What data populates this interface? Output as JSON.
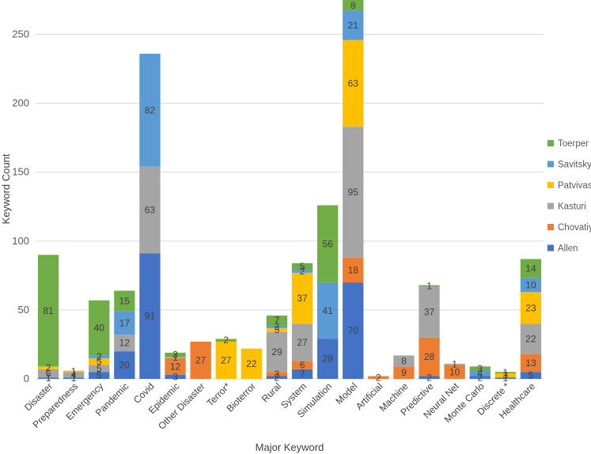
{
  "chart_data": {
    "type": "bar",
    "stacked": true,
    "title": "",
    "xlabel": "Major Keyword",
    "ylabel": "Keyword Count",
    "ylim": [
      0,
      275
    ],
    "yticks": [
      0,
      50,
      100,
      150,
      200,
      250
    ],
    "grid": true,
    "legend_position": "right",
    "categories": [
      "Disaster",
      "Preparedness",
      "Emergency",
      "Pandemic",
      "Covid",
      "Epidemic",
      "Other Disaster",
      "Terror*",
      "Bioterror",
      "Rural",
      "System",
      "Simulation",
      "Model",
      "Artificial",
      "Machine",
      "Predictive",
      "Neural Net",
      "Monte Carlo",
      "Discrete *",
      "Healthcare"
    ],
    "series": [
      {
        "name": "Allen",
        "color": "#4472C4",
        "values": [
          1,
          1,
          5,
          20,
          91,
          3,
          0,
          0,
          0,
          2,
          7,
          29,
          70,
          0,
          0,
          2,
          0,
          2,
          1,
          5
        ]
      },
      {
        "name": "Chovatiya",
        "color": "#ED7D31",
        "values": [
          0,
          0,
          0,
          0,
          0,
          12,
          27,
          0,
          0,
          3,
          6,
          0,
          18,
          2,
          9,
          28,
          10,
          0,
          0,
          13
        ]
      },
      {
        "name": "Kasturi",
        "color": "#A5A5A5",
        "values": [
          6,
          4,
          5,
          12,
          63,
          1,
          0,
          0,
          0,
          29,
          27,
          0,
          95,
          0,
          8,
          37,
          1,
          0,
          0,
          22
        ]
      },
      {
        "name": "Patvivastiri",
        "color": "#FFC000",
        "values": [
          2,
          1,
          5,
          0,
          0,
          0,
          0,
          27,
          22,
          3,
          37,
          0,
          63,
          0,
          0,
          0,
          0,
          0,
          3,
          23
        ]
      },
      {
        "name": "Savitsky",
        "color": "#5B9BD5",
        "values": [
          0,
          0,
          2,
          17,
          82,
          0,
          0,
          0,
          0,
          2,
          2,
          41,
          21,
          0,
          0,
          0,
          0,
          4,
          0,
          10
        ]
      },
      {
        "name": "Toerper",
        "color": "#70AD47",
        "values": [
          81,
          0,
          40,
          15,
          0,
          3,
          0,
          2,
          0,
          7,
          5,
          56,
          8,
          0,
          0,
          1,
          0,
          3,
          1,
          14
        ]
      }
    ]
  }
}
